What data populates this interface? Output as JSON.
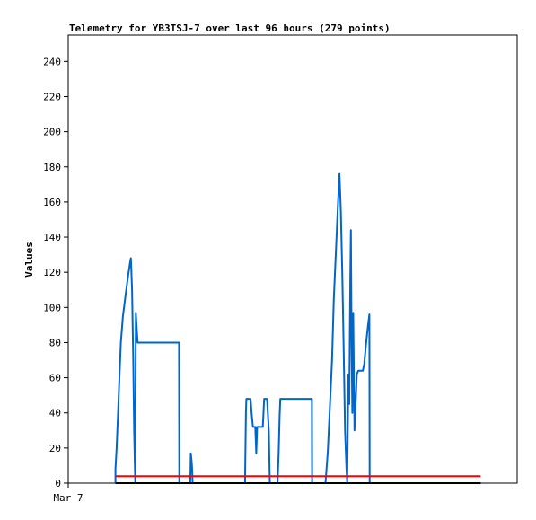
{
  "chart_data": {
    "type": "line",
    "title": "Telemetry for YB3TSJ-7 over last 96 hours (279 points)",
    "xlabel": "",
    "ylabel": "Values",
    "ylim": [
      0,
      255
    ],
    "yticks": [
      0,
      20,
      40,
      60,
      80,
      100,
      120,
      140,
      160,
      180,
      200,
      220,
      240
    ],
    "xlim": [
      0,
      96
    ],
    "xticks": [
      {
        "x": 0,
        "label": "Mar 7"
      }
    ],
    "grid": false,
    "legend": "none",
    "series": [
      {
        "color": "#0066cc",
        "points": [
          [
            10.1,
            0
          ],
          [
            10.1,
            8
          ],
          [
            10.35,
            20
          ],
          [
            10.65,
            40
          ],
          [
            10.95,
            60
          ],
          [
            11.25,
            80
          ],
          [
            11.7,
            95
          ],
          [
            12.3,
            108
          ],
          [
            12.8,
            118
          ],
          [
            13.25,
            126
          ],
          [
            13.4,
            128
          ],
          [
            13.65,
            110
          ],
          [
            13.9,
            70
          ],
          [
            14.1,
            30
          ],
          [
            14.25,
            10
          ],
          [
            14.35,
            0
          ],
          [
            14.45,
            97
          ],
          [
            14.65,
            88
          ],
          [
            14.85,
            80
          ],
          [
            23.7,
            80
          ],
          [
            23.75,
            0
          ],
          [
            26.1,
            0
          ],
          [
            26.2,
            17
          ],
          [
            26.4,
            12
          ],
          [
            26.5,
            8
          ],
          [
            26.6,
            0
          ],
          [
            37.8,
            0
          ],
          [
            37.9,
            20
          ],
          [
            38.0,
            40
          ],
          [
            38.1,
            48
          ],
          [
            39.0,
            48
          ],
          [
            39.2,
            40
          ],
          [
            39.5,
            32
          ],
          [
            40.0,
            32
          ],
          [
            40.2,
            17
          ],
          [
            40.4,
            32
          ],
          [
            41.6,
            32
          ],
          [
            41.9,
            48
          ],
          [
            42.5,
            48
          ],
          [
            42.9,
            30
          ],
          [
            43.1,
            0
          ],
          [
            44.75,
            0
          ],
          [
            45.0,
            18
          ],
          [
            45.2,
            38
          ],
          [
            45.35,
            48
          ],
          [
            52.1,
            48
          ],
          [
            52.15,
            0
          ],
          [
            55.0,
            0
          ],
          [
            55.5,
            18
          ],
          [
            55.9,
            40
          ],
          [
            56.4,
            70
          ],
          [
            56.8,
            105
          ],
          [
            57.3,
            135
          ],
          [
            57.7,
            160
          ],
          [
            58.0,
            176
          ],
          [
            58.3,
            155
          ],
          [
            58.6,
            120
          ],
          [
            58.9,
            75
          ],
          [
            59.2,
            30
          ],
          [
            59.5,
            8
          ],
          [
            59.65,
            0
          ],
          [
            59.9,
            62
          ],
          [
            60.1,
            45
          ],
          [
            60.3,
            115
          ],
          [
            60.45,
            144
          ],
          [
            60.6,
            80
          ],
          [
            60.75,
            40
          ],
          [
            60.95,
            97
          ],
          [
            61.2,
            30
          ],
          [
            61.7,
            62
          ],
          [
            62.0,
            64
          ],
          [
            63.0,
            64
          ],
          [
            63.3,
            68
          ],
          [
            63.7,
            80
          ],
          [
            64.1,
            90
          ],
          [
            64.4,
            96
          ],
          [
            64.45,
            0
          ]
        ]
      },
      {
        "color": "#ff0000",
        "points": [
          [
            10.1,
            4
          ],
          [
            88.2,
            4
          ]
        ]
      },
      {
        "color": "#000000",
        "points": [
          [
            10.1,
            0
          ],
          [
            88.2,
            0
          ]
        ]
      }
    ]
  }
}
